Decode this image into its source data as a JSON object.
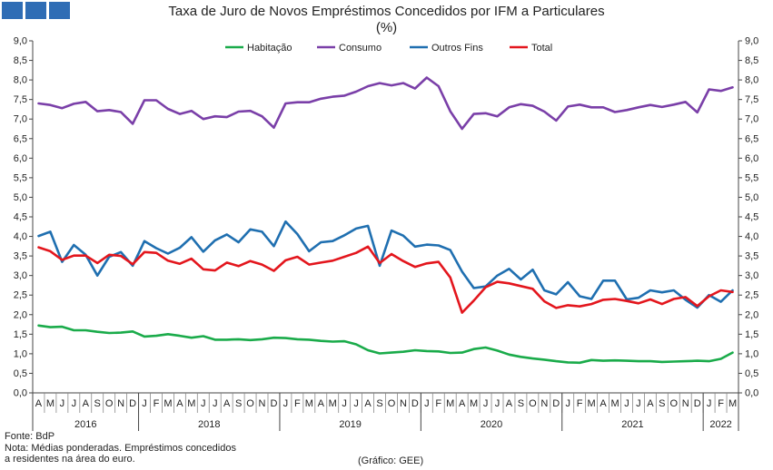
{
  "title": "Taxa de Juro de Novos Empréstimos Concedidos por IFM a Particulares",
  "subtitle": "(%)",
  "source": "Fonte: BdP",
  "note_line1": "Nota: Médias ponderadas. Empréstimos concedidos",
  "note_line2": "a residentes na área do euro.",
  "credit": "(Gráfico: GEE)",
  "chart_data": {
    "type": "line",
    "title": "Taxa de Juro de Novos Empréstimos Concedidos por IFM a Particulares",
    "subtitle": "(%)",
    "ylim": [
      0,
      9
    ],
    "yticks": [
      "0,0",
      "0,5",
      "1,0",
      "1,5",
      "2,0",
      "2,5",
      "3,0",
      "3,5",
      "4,0",
      "4,5",
      "5,0",
      "5,5",
      "6,0",
      "6,5",
      "7,0",
      "7,5",
      "8,0",
      "8,5",
      "9,0"
    ],
    "secondary_y_axis": true,
    "grid": false,
    "legend": "top",
    "month_labels": [
      "A",
      "M",
      "J",
      "J",
      "A",
      "S",
      "O",
      "N",
      "D",
      "J",
      "F",
      "M",
      "A",
      "M",
      "J",
      "J",
      "A",
      "S",
      "O",
      "N",
      "D",
      "J",
      "F",
      "M",
      "A",
      "M",
      "J",
      "J",
      "A",
      "S",
      "O",
      "N",
      "D",
      "J",
      "F",
      "M",
      "A",
      "M",
      "J",
      "J",
      "A",
      "S",
      "O",
      "N",
      "D",
      "J",
      "F",
      "M",
      "A",
      "M",
      "J",
      "J",
      "A",
      "S",
      "O",
      "N",
      "D",
      "J",
      "F",
      "M"
    ],
    "years": [
      {
        "label": "2016",
        "start": 0,
        "end": 8
      },
      {
        "label": "2018",
        "start": 9,
        "end": 20
      },
      {
        "label": "2019",
        "start": 21,
        "end": 32
      },
      {
        "label": "2020",
        "start": 33,
        "end": 44
      },
      {
        "label": "2021",
        "start": 45,
        "end": 56
      },
      {
        "label": "2022",
        "start": 57,
        "end": 59
      }
    ],
    "series": [
      {
        "name": "Habitação",
        "color": "#1aab4a",
        "values": [
          1.72,
          1.68,
          1.69,
          1.6,
          1.6,
          1.56,
          1.53,
          1.54,
          1.57,
          1.44,
          1.46,
          1.5,
          1.46,
          1.41,
          1.45,
          1.36,
          1.36,
          1.37,
          1.35,
          1.37,
          1.41,
          1.4,
          1.37,
          1.36,
          1.33,
          1.31,
          1.32,
          1.24,
          1.09,
          1.01,
          1.03,
          1.05,
          1.09,
          1.07,
          1.06,
          1.02,
          1.03,
          1.12,
          1.16,
          1.08,
          0.98,
          0.92,
          0.88,
          0.85,
          0.81,
          0.78,
          0.77,
          0.84,
          0.82,
          0.83,
          0.82,
          0.81,
          0.81,
          0.79,
          0.8,
          0.81,
          0.82,
          0.81,
          0.87,
          1.03
        ]
      },
      {
        "name": "Consumo",
        "color": "#7a3fa8",
        "values": [
          7.4,
          7.36,
          7.28,
          7.39,
          7.44,
          7.2,
          7.23,
          7.18,
          6.88,
          7.48,
          7.48,
          7.26,
          7.13,
          7.21,
          7.0,
          7.07,
          7.05,
          7.19,
          7.21,
          7.07,
          6.78,
          7.4,
          7.43,
          7.43,
          7.52,
          7.57,
          7.6,
          7.7,
          7.84,
          7.92,
          7.86,
          7.92,
          7.78,
          8.06,
          7.84,
          7.2,
          6.75,
          7.13,
          7.15,
          7.07,
          7.3,
          7.38,
          7.34,
          7.19,
          6.96,
          7.32,
          7.37,
          7.3,
          7.3,
          7.18,
          7.23,
          7.3,
          7.36,
          7.31,
          7.37,
          7.44,
          7.17,
          7.76,
          7.72,
          7.81
        ]
      },
      {
        "name": "Outros Fins",
        "color": "#1f6fb0",
        "values": [
          4.01,
          4.12,
          3.35,
          3.78,
          3.53,
          3.0,
          3.48,
          3.6,
          3.25,
          3.88,
          3.7,
          3.56,
          3.71,
          3.98,
          3.61,
          3.9,
          4.05,
          3.85,
          4.18,
          4.12,
          3.75,
          4.38,
          4.06,
          3.62,
          3.85,
          3.88,
          4.03,
          4.2,
          4.27,
          3.25,
          4.15,
          4.02,
          3.74,
          3.79,
          3.77,
          3.65,
          3.1,
          2.68,
          2.72,
          3.0,
          3.17,
          2.9,
          3.15,
          2.62,
          2.52,
          2.83,
          2.47,
          2.4,
          2.87,
          2.87,
          2.39,
          2.43,
          2.62,
          2.57,
          2.62,
          2.38,
          2.18,
          2.5,
          2.33,
          2.62
        ]
      },
      {
        "name": "Total",
        "color": "#e3161d",
        "values": [
          3.72,
          3.62,
          3.4,
          3.51,
          3.51,
          3.32,
          3.53,
          3.5,
          3.29,
          3.6,
          3.58,
          3.38,
          3.3,
          3.43,
          3.16,
          3.13,
          3.33,
          3.24,
          3.37,
          3.28,
          3.12,
          3.39,
          3.48,
          3.28,
          3.33,
          3.38,
          3.48,
          3.58,
          3.74,
          3.32,
          3.55,
          3.37,
          3.22,
          3.31,
          3.35,
          2.95,
          2.05,
          2.36,
          2.7,
          2.84,
          2.8,
          2.73,
          2.66,
          2.34,
          2.17,
          2.24,
          2.21,
          2.27,
          2.38,
          2.4,
          2.35,
          2.29,
          2.39,
          2.27,
          2.4,
          2.45,
          2.22,
          2.47,
          2.62,
          2.58
        ]
      }
    ]
  }
}
